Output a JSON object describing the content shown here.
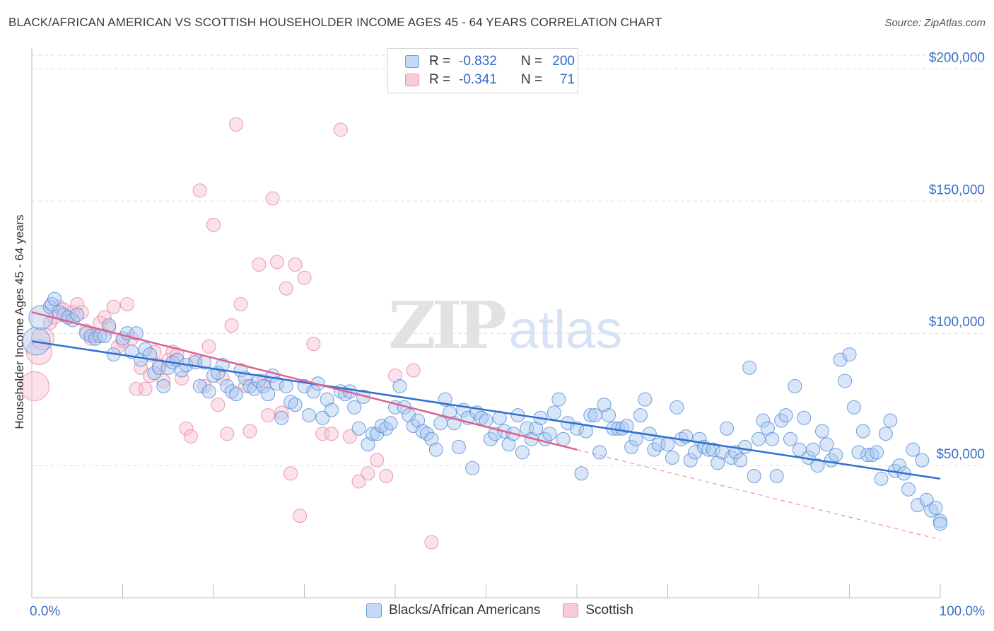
{
  "header": {
    "title": "BLACK/AFRICAN AMERICAN VS SCOTTISH HOUSEHOLDER INCOME AGES 45 - 64 YEARS CORRELATION CHART",
    "source": "Source: ZipAtlas.com"
  },
  "watermark": {
    "zip": "ZIP",
    "atlas": "atlas"
  },
  "legend": {
    "rows": [
      {
        "r_label": "R =",
        "r_value": "-0.832",
        "n_label": "N =",
        "n_value": "200",
        "color": "#a9c7f0"
      },
      {
        "r_label": "R =",
        "r_value": "-0.341",
        "n_label": "N =",
        "n_value": "71",
        "color": "#f7b8cc"
      }
    ]
  },
  "colors": {
    "blue_fill": "#a9c7f0",
    "blue_stroke": "#5b8fd6",
    "blue_line": "#2f6fd0",
    "pink_fill": "#f7bfd0",
    "pink_stroke": "#e88aa8",
    "pink_line": "#e0608a",
    "axis_text": "#3a70c8"
  },
  "chart_data": {
    "type": "scatter",
    "title": "BLACK/AFRICAN AMERICAN VS SCOTTISH HOUSEHOLDER INCOME AGES 45 - 64 YEARS CORRELATION CHART",
    "xlabel": "",
    "ylabel": "Householder Income Ages 45 - 64 years",
    "xlim": [
      0,
      100
    ],
    "ylim": [
      0,
      210000
    ],
    "x_tick_labels": [
      "0.0%",
      "100.0%"
    ],
    "y_ticks": [
      50000,
      100000,
      150000,
      200000
    ],
    "y_tick_labels": [
      "$50,000",
      "$100,000",
      "$150,000",
      "$200,000"
    ],
    "grid": true,
    "legend_position": "top-center",
    "series": [
      {
        "name": "Blacks/African Americans",
        "r": -0.832,
        "n": 200,
        "trend": {
          "x": [
            0,
            100
          ],
          "y": [
            97000,
            45000
          ]
        },
        "points": [
          [
            0.5,
            97000
          ],
          [
            1.0,
            106000
          ],
          [
            2.0,
            110000
          ],
          [
            2.2,
            111000
          ],
          [
            2.5,
            113000
          ],
          [
            3.0,
            108000
          ],
          [
            3.5,
            107000
          ],
          [
            4.0,
            106000
          ],
          [
            4.5,
            105000
          ],
          [
            5.0,
            107000
          ],
          [
            6.0,
            100000
          ],
          [
            6.5,
            99000
          ],
          [
            7.0,
            98000
          ],
          [
            7.5,
            99000
          ],
          [
            8.0,
            99000
          ],
          [
            8.5,
            103000
          ],
          [
            9.0,
            92000
          ],
          [
            10.0,
            98000
          ],
          [
            10.5,
            100000
          ],
          [
            11.0,
            93000
          ],
          [
            11.5,
            100000
          ],
          [
            12.0,
            90000
          ],
          [
            12.5,
            94000
          ],
          [
            13.0,
            92000
          ],
          [
            13.5,
            85000
          ],
          [
            14.0,
            87000
          ],
          [
            14.5,
            80000
          ],
          [
            15.0,
            87000
          ],
          [
            15.5,
            89000
          ],
          [
            16.0,
            90000
          ],
          [
            16.5,
            86000
          ],
          [
            17.0,
            88000
          ],
          [
            18.0,
            89000
          ],
          [
            18.5,
            80000
          ],
          [
            19.0,
            89000
          ],
          [
            19.5,
            78000
          ],
          [
            20.0,
            84000
          ],
          [
            20.5,
            85000
          ],
          [
            21.0,
            88000
          ],
          [
            21.5,
            80000
          ],
          [
            22.0,
            78000
          ],
          [
            22.5,
            77000
          ],
          [
            23.0,
            86000
          ],
          [
            23.5,
            83000
          ],
          [
            24.0,
            80000
          ],
          [
            24.5,
            79000
          ],
          [
            25.0,
            82000
          ],
          [
            25.5,
            80000
          ],
          [
            26.0,
            77000
          ],
          [
            26.5,
            84000
          ],
          [
            27.0,
            81000
          ],
          [
            27.5,
            68000
          ],
          [
            28.0,
            80000
          ],
          [
            28.5,
            74000
          ],
          [
            29.0,
            73000
          ],
          [
            30.0,
            80000
          ],
          [
            30.5,
            69000
          ],
          [
            31.0,
            78000
          ],
          [
            31.5,
            81000
          ],
          [
            32.0,
            68000
          ],
          [
            32.5,
            75000
          ],
          [
            33.0,
            71000
          ],
          [
            34.0,
            78000
          ],
          [
            34.5,
            77000
          ],
          [
            35.0,
            78000
          ],
          [
            35.5,
            72000
          ],
          [
            36.0,
            64000
          ],
          [
            36.5,
            76000
          ],
          [
            37.0,
            58000
          ],
          [
            37.5,
            62000
          ],
          [
            38.0,
            62000
          ],
          [
            38.5,
            65000
          ],
          [
            39.0,
            64000
          ],
          [
            39.5,
            66000
          ],
          [
            40.0,
            72000
          ],
          [
            40.5,
            80000
          ],
          [
            41.0,
            72000
          ],
          [
            41.5,
            69000
          ],
          [
            42.0,
            65000
          ],
          [
            42.5,
            67000
          ],
          [
            43.0,
            63000
          ],
          [
            43.5,
            62000
          ],
          [
            44.0,
            60000
          ],
          [
            44.5,
            56000
          ],
          [
            45.0,
            66000
          ],
          [
            45.5,
            75000
          ],
          [
            46.0,
            70000
          ],
          [
            46.5,
            66000
          ],
          [
            47.0,
            57000
          ],
          [
            47.5,
            71000
          ],
          [
            48.0,
            68000
          ],
          [
            48.5,
            49000
          ],
          [
            49.0,
            70000
          ],
          [
            49.5,
            68000
          ],
          [
            50.0,
            67000
          ],
          [
            50.5,
            60000
          ],
          [
            51.0,
            62000
          ],
          [
            51.5,
            68000
          ],
          [
            52.0,
            63000
          ],
          [
            52.5,
            58000
          ],
          [
            53.0,
            62000
          ],
          [
            53.5,
            69000
          ],
          [
            54.0,
            55000
          ],
          [
            54.5,
            64000
          ],
          [
            55.0,
            60000
          ],
          [
            55.5,
            64000
          ],
          [
            56.0,
            68000
          ],
          [
            56.5,
            60000
          ],
          [
            57.0,
            62000
          ],
          [
            57.5,
            70000
          ],
          [
            58.0,
            75000
          ],
          [
            58.5,
            60000
          ],
          [
            59.0,
            66000
          ],
          [
            60.0,
            64000
          ],
          [
            60.5,
            47000
          ],
          [
            61.0,
            63000
          ],
          [
            61.5,
            69000
          ],
          [
            62.0,
            69000
          ],
          [
            62.5,
            55000
          ],
          [
            63.0,
            73000
          ],
          [
            63.5,
            69000
          ],
          [
            64.0,
            64000
          ],
          [
            64.5,
            64000
          ],
          [
            65.0,
            64000
          ],
          [
            65.5,
            65000
          ],
          [
            66.0,
            57000
          ],
          [
            66.5,
            60000
          ],
          [
            67.0,
            69000
          ],
          [
            67.5,
            75000
          ],
          [
            68.0,
            62000
          ],
          [
            68.5,
            56000
          ],
          [
            69.0,
            58000
          ],
          [
            70.0,
            58000
          ],
          [
            70.5,
            53000
          ],
          [
            71.0,
            72000
          ],
          [
            71.5,
            60000
          ],
          [
            72.0,
            61000
          ],
          [
            72.5,
            52000
          ],
          [
            73.0,
            55000
          ],
          [
            73.5,
            60000
          ],
          [
            74.0,
            57000
          ],
          [
            74.5,
            56000
          ],
          [
            75.0,
            56000
          ],
          [
            75.5,
            51000
          ],
          [
            76.0,
            55000
          ],
          [
            76.5,
            64000
          ],
          [
            77.0,
            53000
          ],
          [
            77.5,
            55000
          ],
          [
            78.0,
            52000
          ],
          [
            78.5,
            57000
          ],
          [
            79.0,
            87000
          ],
          [
            79.5,
            46000
          ],
          [
            80.0,
            60000
          ],
          [
            80.5,
            67000
          ],
          [
            81.0,
            64000
          ],
          [
            81.5,
            60000
          ],
          [
            82.0,
            46000
          ],
          [
            82.5,
            67000
          ],
          [
            83.0,
            69000
          ],
          [
            83.5,
            60000
          ],
          [
            84.0,
            80000
          ],
          [
            84.5,
            56000
          ],
          [
            85.0,
            68000
          ],
          [
            85.5,
            53000
          ],
          [
            86.0,
            56000
          ],
          [
            86.5,
            50000
          ],
          [
            87.0,
            63000
          ],
          [
            87.5,
            58000
          ],
          [
            88.0,
            52000
          ],
          [
            88.5,
            54000
          ],
          [
            89.0,
            90000
          ],
          [
            89.5,
            82000
          ],
          [
            90.0,
            92000
          ],
          [
            90.5,
            72000
          ],
          [
            91.0,
            55000
          ],
          [
            91.5,
            63000
          ],
          [
            92.0,
            54000
          ],
          [
            92.5,
            54000
          ],
          [
            93.0,
            55000
          ],
          [
            93.5,
            45000
          ],
          [
            94.0,
            62000
          ],
          [
            94.5,
            67000
          ],
          [
            95.0,
            48000
          ],
          [
            95.5,
            50000
          ],
          [
            96.0,
            47000
          ],
          [
            96.5,
            41000
          ],
          [
            97.0,
            56000
          ],
          [
            97.5,
            35000
          ],
          [
            98.0,
            52000
          ],
          [
            98.5,
            37000
          ],
          [
            99.0,
            33000
          ],
          [
            99.5,
            34000
          ],
          [
            100.0,
            29000
          ],
          [
            100.0,
            28000
          ]
        ]
      },
      {
        "name": "Scottish",
        "r": -0.341,
        "n": 71,
        "trend": {
          "x": [
            0,
            60
          ],
          "y": [
            108000,
            56000
          ],
          "dashed_to": [
            100,
            22000
          ]
        },
        "points": [
          [
            0.3,
            80000
          ],
          [
            0.8,
            93000
          ],
          [
            1.2,
            98000
          ],
          [
            2.0,
            104000
          ],
          [
            2.5,
            106000
          ],
          [
            3.0,
            110000
          ],
          [
            3.5,
            109000
          ],
          [
            4.0,
            106000
          ],
          [
            4.5,
            108000
          ],
          [
            5.0,
            111000
          ],
          [
            5.5,
            108000
          ],
          [
            6.0,
            101000
          ],
          [
            6.5,
            98000
          ],
          [
            7.0,
            99000
          ],
          [
            7.5,
            104000
          ],
          [
            8.0,
            106000
          ],
          [
            8.5,
            102000
          ],
          [
            9.0,
            110000
          ],
          [
            9.5,
            95000
          ],
          [
            10.0,
            97000
          ],
          [
            10.5,
            111000
          ],
          [
            11.0,
            98000
          ],
          [
            11.5,
            79000
          ],
          [
            12.0,
            87000
          ],
          [
            12.5,
            79000
          ],
          [
            13.0,
            84000
          ],
          [
            13.5,
            93000
          ],
          [
            14.0,
            88000
          ],
          [
            14.5,
            82000
          ],
          [
            15.0,
            90000
          ],
          [
            15.5,
            93000
          ],
          [
            16.0,
            92000
          ],
          [
            16.5,
            83000
          ],
          [
            17.0,
            64000
          ],
          [
            17.5,
            61000
          ],
          [
            18.0,
            90000
          ],
          [
            18.5,
            154000
          ],
          [
            19.0,
            80000
          ],
          [
            19.5,
            95000
          ],
          [
            20.0,
            141000
          ],
          [
            20.5,
            73000
          ],
          [
            21.0,
            83000
          ],
          [
            21.5,
            62000
          ],
          [
            22.0,
            103000
          ],
          [
            22.5,
            179000
          ],
          [
            23.0,
            111000
          ],
          [
            23.5,
            80000
          ],
          [
            24.0,
            63000
          ],
          [
            25.0,
            126000
          ],
          [
            25.5,
            82000
          ],
          [
            26.0,
            69000
          ],
          [
            26.5,
            151000
          ],
          [
            27.0,
            127000
          ],
          [
            27.5,
            70000
          ],
          [
            28.0,
            117000
          ],
          [
            28.5,
            47000
          ],
          [
            29.0,
            126000
          ],
          [
            29.5,
            31000
          ],
          [
            30.0,
            121000
          ],
          [
            31.0,
            96000
          ],
          [
            32.0,
            62000
          ],
          [
            33.0,
            62000
          ],
          [
            34.0,
            177000
          ],
          [
            35.0,
            61000
          ],
          [
            36.0,
            44000
          ],
          [
            37.0,
            47000
          ],
          [
            38.0,
            52000
          ],
          [
            39.0,
            46000
          ],
          [
            40.0,
            84000
          ],
          [
            42.0,
            86000
          ],
          [
            44.0,
            21000
          ]
        ]
      }
    ]
  }
}
